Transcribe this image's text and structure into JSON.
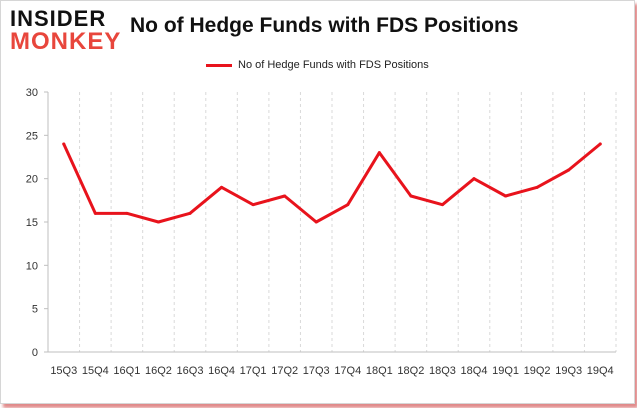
{
  "logo": {
    "line1": "INSIDER",
    "line2": "MONKEY"
  },
  "colors": {
    "series": "#e8131c",
    "grid": "#d9d9d9",
    "frame_shadow": "#e08a8a"
  },
  "chart_data": {
    "type": "line",
    "title": "No of Hedge Funds with FDS Positions",
    "xlabel": "",
    "ylabel": "",
    "ylim": [
      0,
      30
    ],
    "yticks": [
      0,
      5,
      10,
      15,
      20,
      25,
      30
    ],
    "grid": "vertical dashed between categories",
    "legend_position": "top-center",
    "categories": [
      "15Q3",
      "15Q4",
      "16Q1",
      "16Q2",
      "16Q3",
      "16Q4",
      "17Q1",
      "17Q2",
      "17Q3",
      "17Q4",
      "18Q1",
      "18Q2",
      "18Q3",
      "18Q4",
      "19Q1",
      "19Q2",
      "19Q3",
      "19Q4"
    ],
    "series": [
      {
        "name": "No of Hedge Funds with FDS Positions",
        "values": [
          24,
          16,
          16,
          15,
          16,
          19,
          17,
          18,
          15,
          17,
          23,
          18,
          17,
          20,
          18,
          19,
          21,
          24
        ]
      }
    ]
  }
}
